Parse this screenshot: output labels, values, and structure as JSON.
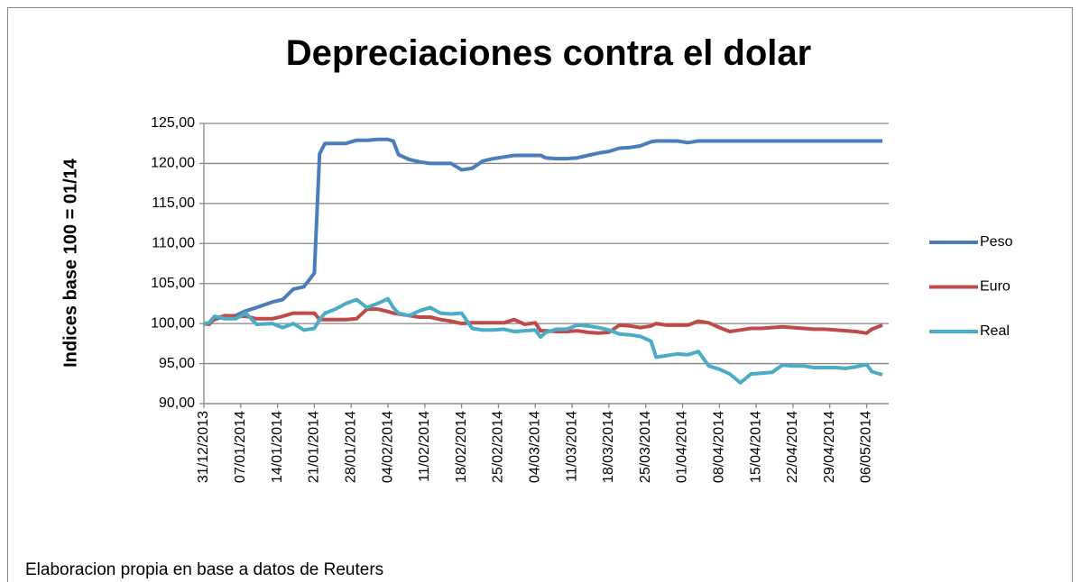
{
  "chart_data": {
    "type": "line",
    "title": "Depreciaciones contra el dolar",
    "y_label": "Indices base 100 = 01/14",
    "footnote": "Elaboracion propia en base a datos de Reuters",
    "x": [
      "31/12/2013",
      "01/01/2014",
      "02/01/2014",
      "04/01/2014",
      "06/01/2014",
      "08/01/2014",
      "10/01/2014",
      "13/01/2014",
      "15/01/2014",
      "17/01/2014",
      "19/01/2014",
      "21/01/2014",
      "22/01/2014",
      "23/01/2014",
      "25/01/2014",
      "27/01/2014",
      "29/01/2014",
      "31/01/2014",
      "02/02/2014",
      "04/02/2014",
      "05/02/2014",
      "06/02/2014",
      "08/02/2014",
      "10/02/2014",
      "12/02/2014",
      "14/02/2014",
      "16/02/2014",
      "18/02/2014",
      "20/02/2014",
      "22/02/2014",
      "24/02/2014",
      "26/02/2014",
      "28/02/2014",
      "02/03/2014",
      "04/03/2014",
      "05/03/2014",
      "06/03/2014",
      "08/03/2014",
      "10/03/2014",
      "12/03/2014",
      "14/03/2014",
      "16/03/2014",
      "18/03/2014",
      "20/03/2014",
      "22/03/2014",
      "24/03/2014",
      "26/03/2014",
      "27/03/2014",
      "29/03/2014",
      "31/03/2014",
      "02/04/2014",
      "04/04/2014",
      "06/04/2014",
      "08/04/2014",
      "10/04/2014",
      "12/04/2014",
      "14/04/2014",
      "16/04/2014",
      "18/04/2014",
      "20/04/2014",
      "22/04/2014",
      "24/04/2014",
      "26/04/2014",
      "28/04/2014",
      "30/04/2014",
      "02/05/2014",
      "04/05/2014",
      "06/05/2014",
      "07/05/2014",
      "09/05/2014"
    ],
    "series": [
      {
        "name": "Peso",
        "color": "#4a7ebb",
        "values": [
          100,
          100.1,
          100.5,
          100.9,
          101,
          101.6,
          102,
          102.7,
          103,
          104.3,
          104.6,
          106.3,
          121.2,
          122.5,
          122.5,
          122.5,
          122.9,
          122.9,
          123,
          123,
          122.8,
          121.1,
          120.5,
          120.2,
          120,
          120,
          120,
          119.2,
          119.4,
          120.3,
          120.6,
          120.8,
          121,
          121,
          121,
          121,
          120.7,
          120.6,
          120.6,
          120.7,
          121,
          121.3,
          121.5,
          121.9,
          122,
          122.2,
          122.7,
          122.8,
          122.8,
          122.8,
          122.6,
          122.8,
          122.8,
          122.8,
          122.8,
          122.8,
          122.8,
          122.8,
          122.8,
          122.8,
          122.8,
          122.8,
          122.8,
          122.8,
          122.8,
          122.8,
          122.8,
          122.8,
          122.8,
          122.8
        ]
      },
      {
        "name": "Euro",
        "color": "#be4b48",
        "values": [
          100,
          99.9,
          100.6,
          101,
          100.9,
          100.9,
          100.6,
          100.6,
          100.9,
          101.3,
          101.3,
          101.3,
          100.5,
          100.5,
          100.5,
          100.5,
          100.6,
          101.8,
          101.8,
          101.5,
          101.3,
          101.2,
          101,
          100.8,
          100.8,
          100.5,
          100.3,
          100,
          100.1,
          100.1,
          100.1,
          100.1,
          100.5,
          99.9,
          100.1,
          99.1,
          99.1,
          99,
          99,
          99.1,
          98.9,
          98.8,
          98.9,
          99.8,
          99.7,
          99.5,
          99.7,
          100,
          99.8,
          99.8,
          99.8,
          100.3,
          100.1,
          99.5,
          99,
          99.2,
          99.4,
          99.4,
          99.5,
          99.6,
          99.5,
          99.4,
          99.3,
          99.3,
          99.2,
          99.1,
          99,
          98.8,
          99.3,
          99.8
        ]
      },
      {
        "name": "Real",
        "color": "#4bacc6",
        "values": [
          100,
          100.1,
          100.9,
          100.6,
          100.6,
          101.3,
          99.9,
          100,
          99.5,
          100,
          99.2,
          99.4,
          100.5,
          101.3,
          101.8,
          102.5,
          103,
          102,
          102.5,
          103.1,
          102,
          101.3,
          101,
          101.6,
          102,
          101.3,
          101.2,
          101.3,
          99.4,
          99.2,
          99.2,
          99.3,
          99,
          99.1,
          99.2,
          98.3,
          98.9,
          99.3,
          99.3,
          99.8,
          99.7,
          99.5,
          99.2,
          98.7,
          98.6,
          98.4,
          97.8,
          95.8,
          96,
          96.2,
          96.1,
          96.5,
          94.7,
          94.3,
          93.7,
          92.6,
          93.7,
          93.8,
          93.9,
          94.8,
          94.7,
          94.7,
          94.5,
          94.5,
          94.5,
          94.4,
          94.6,
          94.9,
          94,
          93.6
        ]
      }
    ],
    "xlim": [
      "31/12/2013",
      "09/05/2014"
    ],
    "xticks": [
      "31/12/2013",
      "07/01/2014",
      "14/01/2014",
      "21/01/2014",
      "28/01/2014",
      "04/02/2014",
      "11/02/2014",
      "18/02/2014",
      "25/02/2014",
      "04/03/2014",
      "11/03/2014",
      "18/03/2014",
      "25/03/2014",
      "01/04/2014",
      "08/04/2014",
      "15/04/2014",
      "22/04/2014",
      "29/04/2014",
      "06/05/2014"
    ],
    "ylim": [
      90,
      125
    ],
    "yticks": [
      {
        "value": 90,
        "label": "90,00"
      },
      {
        "value": 95,
        "label": "95,00"
      },
      {
        "value": 100,
        "label": "100,00"
      },
      {
        "value": 105,
        "label": "105,00"
      },
      {
        "value": 110,
        "label": "110,00"
      },
      {
        "value": 115,
        "label": "115,00"
      },
      {
        "value": 120,
        "label": "120,00"
      },
      {
        "value": 125,
        "label": "125,00"
      }
    ],
    "grid": true,
    "legend": "right"
  }
}
